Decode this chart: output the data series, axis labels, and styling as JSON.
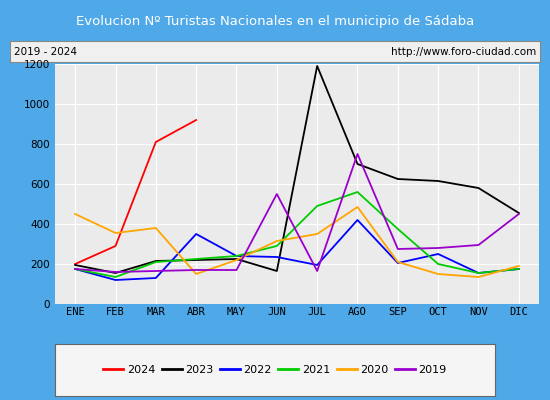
{
  "title": "Evolucion Nº Turistas Nacionales en el municipio de Sádaba",
  "subtitle_left": "2019 - 2024",
  "subtitle_right": "http://www.foro-ciudad.com",
  "x_labels": [
    "ENE",
    "FEB",
    "MAR",
    "ABR",
    "MAY",
    "JUN",
    "JUL",
    "AGO",
    "SEP",
    "OCT",
    "NOV",
    "DIC"
  ],
  "ylim": [
    0,
    1200
  ],
  "yticks": [
    0,
    200,
    400,
    600,
    800,
    1000,
    1200
  ],
  "series": {
    "2024": {
      "color": "#ff0000",
      "values": [
        200,
        290,
        810,
        920,
        null,
        null,
        null,
        null,
        null,
        null,
        null,
        null
      ]
    },
    "2023": {
      "color": "#000000",
      "values": [
        195,
        155,
        215,
        220,
        225,
        165,
        1190,
        700,
        625,
        615,
        580,
        455
      ]
    },
    "2022": {
      "color": "#0000ff",
      "values": [
        175,
        120,
        130,
        350,
        240,
        235,
        195,
        420,
        205,
        250,
        155,
        175
      ]
    },
    "2021": {
      "color": "#00cc00",
      "values": [
        175,
        135,
        210,
        225,
        240,
        290,
        490,
        560,
        375,
        200,
        155,
        175
      ]
    },
    "2020": {
      "color": "#ffa500",
      "values": [
        450,
        355,
        380,
        150,
        220,
        315,
        350,
        485,
        210,
        150,
        135,
        190
      ]
    },
    "2019": {
      "color": "#9900cc",
      "values": [
        175,
        160,
        165,
        170,
        170,
        550,
        165,
        750,
        275,
        280,
        295,
        450
      ]
    }
  },
  "title_bg_color": "#4fa8e8",
  "title_text_color": "#ffffff",
  "plot_bg_color": "#ebebeb",
  "grid_color": "#ffffff",
  "border_color": "#4fa8e8",
  "legend_box_color": "#f5f5f5"
}
